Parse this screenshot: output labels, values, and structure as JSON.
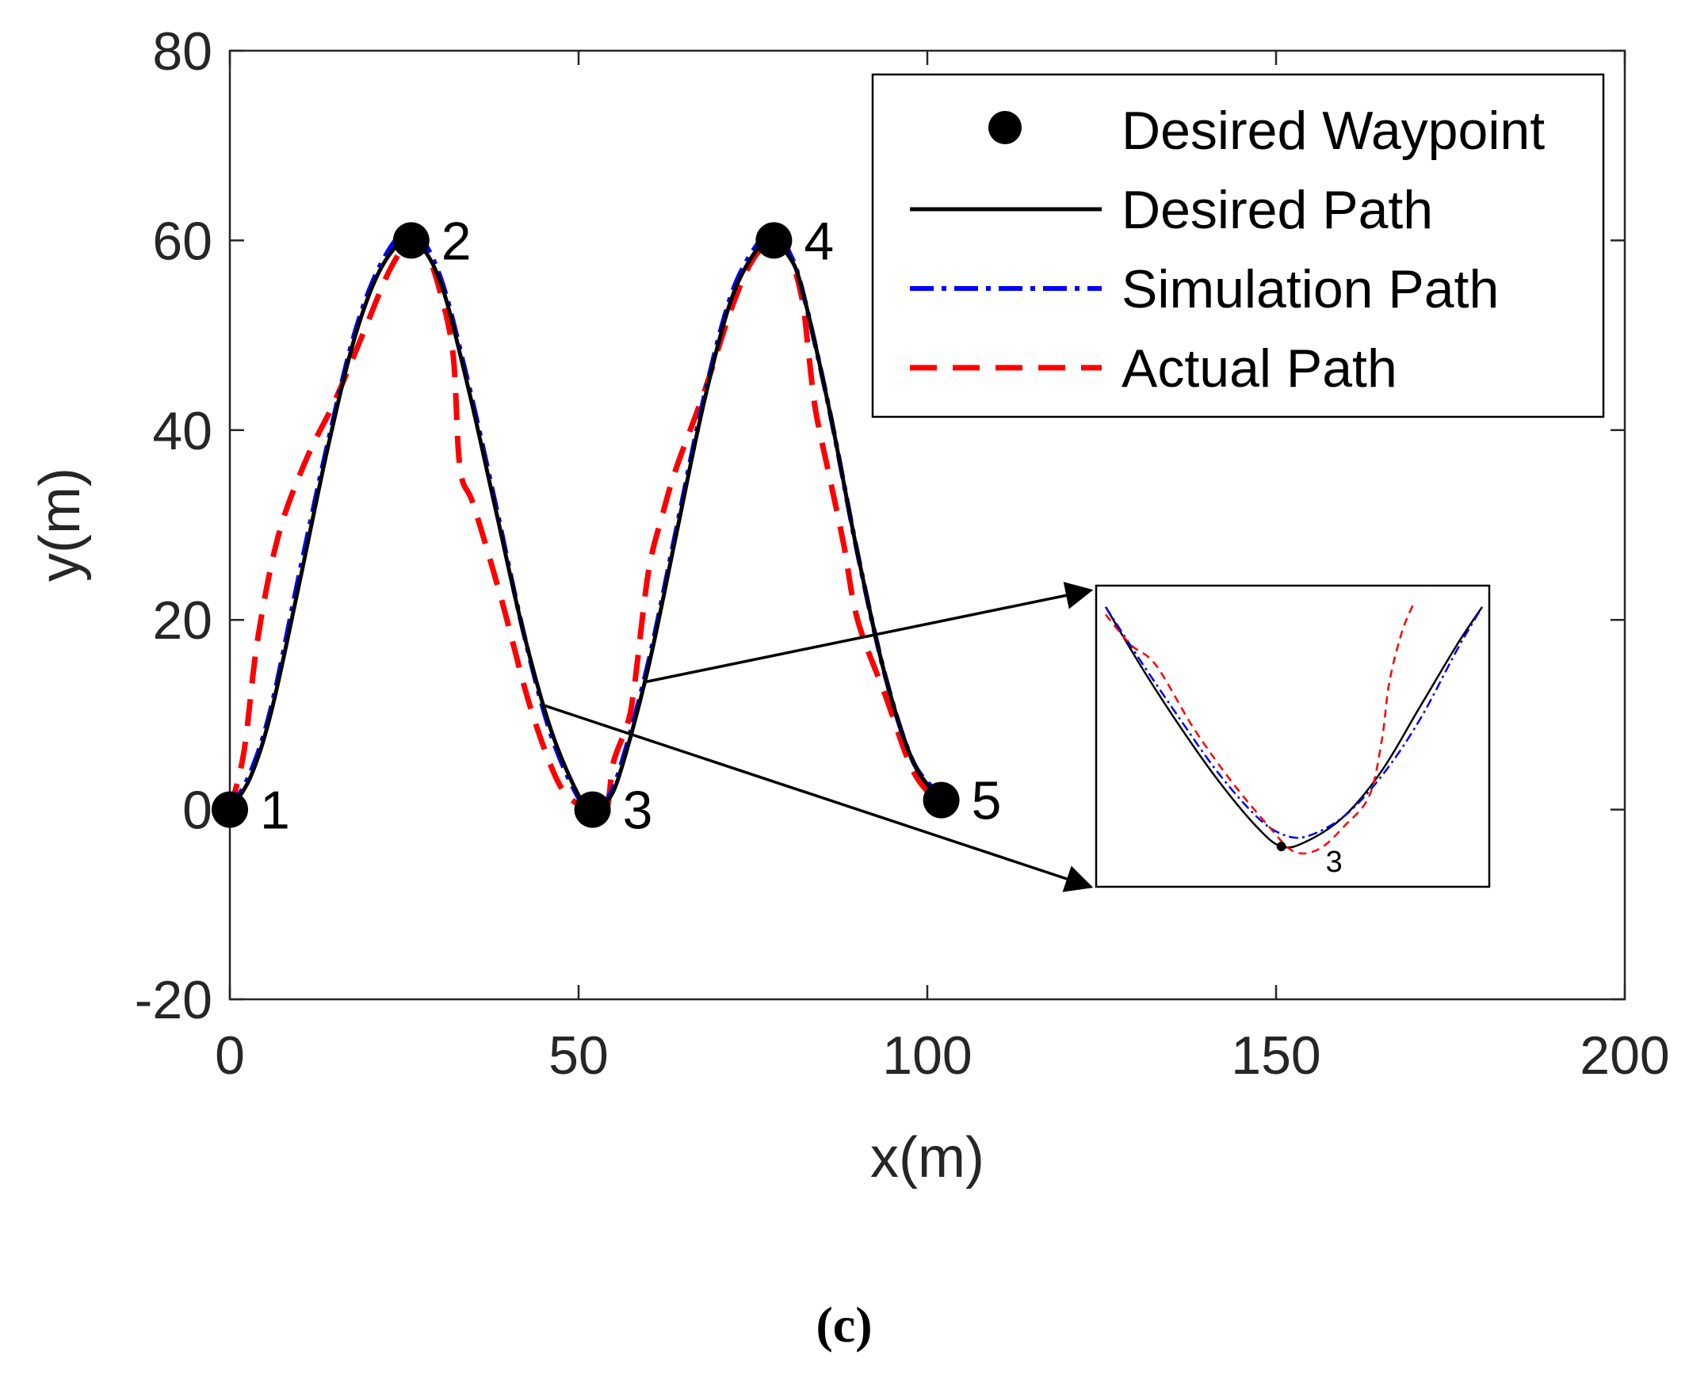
{
  "chart_data": {
    "type": "line",
    "title": "",
    "xlabel": "x(m)",
    "ylabel": "y(m)",
    "xlim": [
      0,
      200
    ],
    "ylim": [
      -20,
      80
    ],
    "xticks": [
      0,
      50,
      100,
      150,
      200
    ],
    "yticks": [
      -20,
      0,
      20,
      40,
      60,
      80
    ],
    "grid": false,
    "legend_position": "top-right",
    "colors": {
      "waypoint": "#000000",
      "desired": "#000000",
      "simulation": "#0000ff",
      "actual": "#ff0000",
      "axes": "#262626"
    },
    "waypoints": [
      {
        "label": "1",
        "x": 0,
        "y": 0
      },
      {
        "label": "2",
        "x": 26,
        "y": 60
      },
      {
        "label": "3",
        "x": 52,
        "y": 0
      },
      {
        "label": "4",
        "x": 78,
        "y": 60
      },
      {
        "label": "5",
        "x": 102,
        "y": 1
      }
    ],
    "series": [
      {
        "name": "Desired Path",
        "style": "solid",
        "x": [
          0,
          3,
          6,
          10,
          14,
          18,
          22,
          26,
          30,
          34,
          38,
          42,
          46,
          50,
          52,
          54,
          56,
          60,
          64,
          68,
          72,
          76,
          78,
          80,
          82,
          86,
          90,
          94,
          98,
          102
        ],
        "y": [
          0,
          3.5,
          10.5,
          24,
          38,
          50,
          57.5,
          60,
          56,
          45,
          32,
          19,
          8.5,
          1.5,
          0,
          0.8,
          4,
          15,
          29,
          43,
          54,
          59.5,
          60,
          58.5,
          55,
          42,
          27,
          14,
          5,
          1
        ]
      },
      {
        "name": "Simulation Path",
        "style": "dash-dot",
        "x": [
          0,
          3,
          6,
          10,
          14,
          18,
          22,
          26,
          30,
          34,
          38,
          42,
          46,
          50,
          52,
          54,
          56,
          60,
          64,
          68,
          72,
          76,
          78,
          80,
          82,
          86,
          90,
          94,
          98,
          102
        ],
        "y": [
          0,
          4,
          11,
          25,
          38.5,
          50.5,
          58,
          61,
          56.5,
          45.5,
          32.5,
          19,
          8,
          1.2,
          0,
          1,
          4.5,
          15.5,
          29.5,
          43.5,
          54.5,
          60,
          61,
          59,
          55,
          42,
          27,
          14,
          5,
          1.5
        ]
      },
      {
        "name": "Actual Path",
        "style": "dashed",
        "x": [
          0,
          2,
          4,
          7,
          11,
          15,
          19,
          23,
          26,
          28,
          30,
          32,
          33,
          35,
          39,
          43,
          47,
          50,
          52,
          54,
          55,
          57,
          58,
          60,
          62,
          64,
          68,
          72,
          75,
          78,
          80,
          82,
          83,
          84,
          86,
          88,
          90,
          94,
          98,
          102
        ],
        "y": [
          0,
          6,
          18,
          29,
          37,
          43,
          50,
          57,
          60,
          59,
          55,
          48,
          36,
          32,
          22,
          11,
          3,
          0.5,
          0,
          0,
          5,
          9,
          13,
          25,
          31,
          36,
          44,
          53,
          58,
          60,
          59,
          54,
          48,
          42,
          35,
          28,
          20,
          12,
          4,
          0.5
        ]
      }
    ],
    "legend": [
      {
        "label": "Desired Waypoint",
        "marker": "circle"
      },
      {
        "label": "Desired Path",
        "style": "solid"
      },
      {
        "label": "Simulation Path",
        "style": "dash-dot"
      },
      {
        "label": "Actual Path",
        "style": "dashed"
      }
    ],
    "inset": {
      "description": "zoom on waypoint 3",
      "waypoint_label": "3",
      "xlim": [
        45,
        60
      ],
      "ylim": [
        -1,
        10
      ],
      "waypoint": {
        "x": 52,
        "y": 0
      },
      "series": [
        {
          "name": "Desired Path",
          "x": [
            45,
            46.5,
            48,
            49.5,
            51,
            52,
            53,
            54.5,
            56,
            57.5,
            59,
            60
          ],
          "y": [
            9.5,
            7,
            4.7,
            2.6,
            0.8,
            0,
            0.2,
            1.2,
            3,
            5.5,
            8,
            9.5
          ]
        },
        {
          "name": "Simulation Path",
          "x": [
            45,
            46.5,
            48,
            49.5,
            51,
            52,
            53,
            54.5,
            56,
            57.5,
            59,
            60
          ],
          "y": [
            9.5,
            7.2,
            5,
            2.9,
            1.2,
            0.5,
            0.4,
            1.2,
            2.8,
            5,
            7.8,
            9.5
          ]
        },
        {
          "name": "Actual Path",
          "x": [
            45,
            46,
            47,
            48.5,
            50,
            51.5,
            52.5,
            53.5,
            54.5,
            55.5,
            56,
            56.3,
            56.8,
            57.3
          ],
          "y": [
            9.2,
            8,
            7.2,
            4.7,
            2.6,
            0.8,
            -0.2,
            -0.1,
            0.8,
            2,
            4.2,
            6.5,
            8.5,
            9.7
          ]
        }
      ]
    }
  },
  "caption": "(c)"
}
